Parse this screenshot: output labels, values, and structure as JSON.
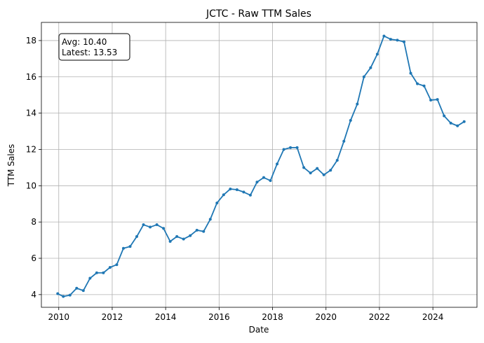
{
  "chart_data": {
    "type": "line",
    "title": "JCTC - Raw TTM Sales",
    "xlabel": "Date",
    "ylabel": "TTM Sales",
    "xlim": [
      2009.35,
      2025.65
    ],
    "ylim": [
      3.3,
      19.0
    ],
    "x_ticks": [
      2010,
      2012,
      2014,
      2016,
      2018,
      2020,
      2022,
      2024
    ],
    "y_ticks": [
      4,
      6,
      8,
      10,
      12,
      14,
      16,
      18
    ],
    "grid": true,
    "legend": "none",
    "annotation": {
      "lines": [
        "Avg: 10.40",
        "Latest: 13.53"
      ]
    },
    "series": [
      {
        "color": "#1f77b4",
        "x": [
          2009.96,
          2010.17,
          2010.42,
          2010.67,
          2010.92,
          2011.17,
          2011.42,
          2011.67,
          2011.92,
          2012.17,
          2012.42,
          2012.67,
          2012.92,
          2013.17,
          2013.42,
          2013.67,
          2013.92,
          2014.17,
          2014.42,
          2014.67,
          2014.92,
          2015.17,
          2015.42,
          2015.67,
          2015.92,
          2016.17,
          2016.42,
          2016.67,
          2016.92,
          2017.17,
          2017.42,
          2017.67,
          2017.92,
          2018.17,
          2018.42,
          2018.67,
          2018.92,
          2019.17,
          2019.42,
          2019.67,
          2019.92,
          2020.17,
          2020.42,
          2020.67,
          2020.92,
          2021.17,
          2021.42,
          2021.67,
          2021.92,
          2022.17,
          2022.42,
          2022.67,
          2022.92,
          2023.17,
          2023.42,
          2023.67,
          2023.92,
          2024.17,
          2024.42,
          2024.67,
          2024.92,
          2025.17
        ],
        "values": [
          4.05,
          3.9,
          3.97,
          4.35,
          4.22,
          4.9,
          5.2,
          5.2,
          5.5,
          5.65,
          6.55,
          6.65,
          7.2,
          7.85,
          7.72,
          7.85,
          7.65,
          6.93,
          7.2,
          7.06,
          7.25,
          7.55,
          7.48,
          8.15,
          9.05,
          9.5,
          9.82,
          9.78,
          9.65,
          9.48,
          10.2,
          10.45,
          10.28,
          11.2,
          12.0,
          12.1,
          12.1,
          11.0,
          10.7,
          10.95,
          10.6,
          10.85,
          11.4,
          12.45,
          13.6,
          14.5,
          16.0,
          16.5,
          17.25,
          18.25,
          18.07,
          18.02,
          17.93,
          16.2,
          15.62,
          15.5,
          14.72,
          14.75,
          13.85,
          13.45,
          13.3,
          13.53
        ]
      }
    ]
  }
}
